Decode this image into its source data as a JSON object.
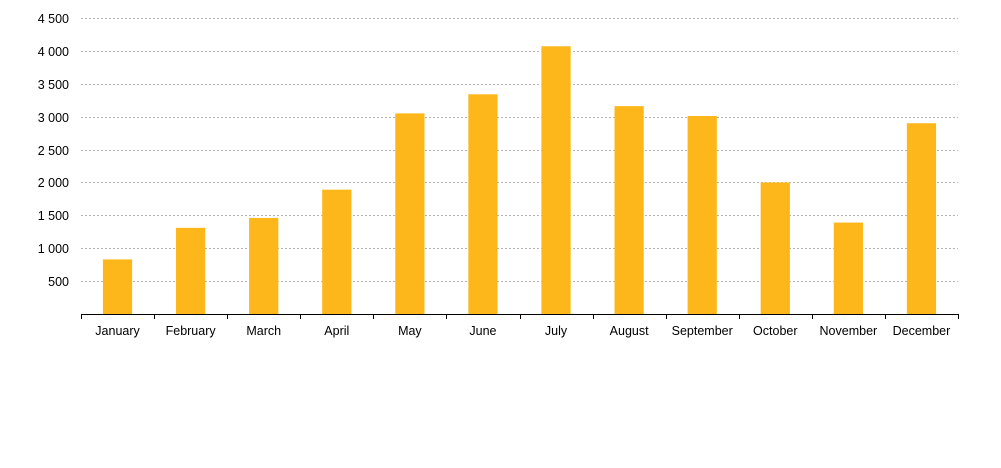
{
  "chart_data": {
    "type": "bar",
    "title": "",
    "xlabel": "",
    "ylabel": "",
    "categories": [
      "January",
      "February",
      "March",
      "April",
      "May",
      "June",
      "July",
      "August",
      "September",
      "October",
      "November",
      "December"
    ],
    "values": [
      830,
      1310,
      1460,
      1890,
      3050,
      3340,
      4070,
      3160,
      3010,
      2000,
      1390,
      2900
    ],
    "ylim": [
      0,
      4500
    ],
    "yticks": [
      500,
      1000,
      1500,
      2000,
      2500,
      3000,
      3500,
      4000,
      4500
    ],
    "ytick_labels": [
      "500",
      "1 000",
      "1 500",
      "2 000",
      "2 500",
      "3 000",
      "3 500",
      "4 000",
      "4 500"
    ],
    "grid": true,
    "legend": "none",
    "colors": {
      "bar": "#FDB71A",
      "grid": "#B4B4B4",
      "axis": "#000000"
    }
  }
}
